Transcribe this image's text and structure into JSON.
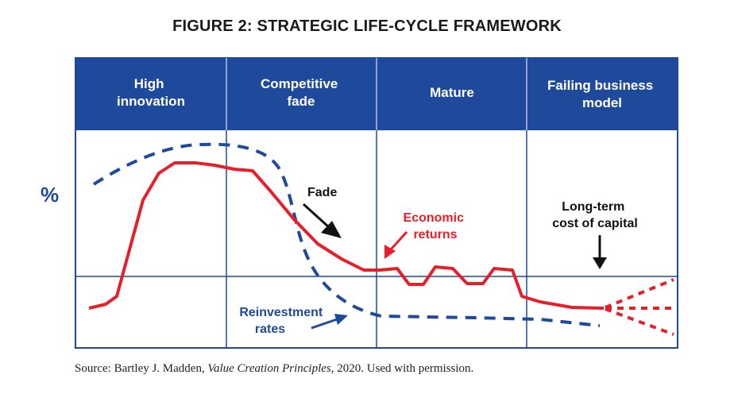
{
  "figure": {
    "title": "FIGURE 2: STRATEGIC LIFE-CYCLE FRAMEWORK"
  },
  "phases": [
    {
      "lines": [
        "High",
        "innovation"
      ]
    },
    {
      "lines": [
        "Competitive",
        "fade"
      ]
    },
    {
      "lines": [
        "Mature"
      ]
    },
    {
      "lines": [
        "Failing business",
        "model"
      ]
    }
  ],
  "axis": {
    "y_symbol": "%"
  },
  "annotations": {
    "fade": "Fade",
    "economic_returns": [
      "Economic",
      "returns"
    ],
    "cost_of_capital": [
      "Long-term",
      "cost of capital"
    ],
    "reinvestment_rates": [
      "Reinvestment",
      "rates"
    ]
  },
  "colors": {
    "header_blue": "#1f4a9c",
    "grid_blue": "#1f4a9c",
    "economic_returns_red": "#e5202a",
    "reinvestment_blue": "#1f4a9c"
  },
  "source": {
    "prefix": "Source: Bartley J. Madden, ",
    "work": "Value Creation Principles",
    "suffix": ", 2020. Used with permission."
  }
}
